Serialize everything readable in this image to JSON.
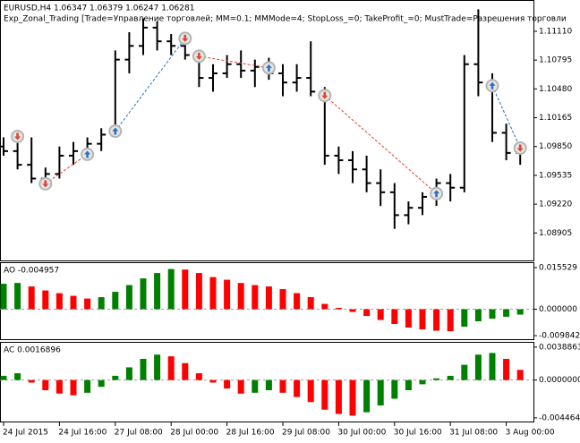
{
  "chart_data": [
    {
      "type": "ohlc",
      "title": "EURUSD,H4  1.06347 1.06379 1.06247 1.06281",
      "subtitle": "Exp_Zonal_Trading [Trade=Управление торговлей; MM=0.1; MMMode=4; StopLoss_=0; TakeProfit_=0; MustTrade=Разрешения торговли",
      "categories": [
        "24 Jul 2015",
        null,
        null,
        null,
        "24 Jul 16:00",
        null,
        null,
        null,
        "27 Jul 08:00",
        null,
        null,
        null,
        "28 Jul 00:00",
        null,
        null,
        null,
        "28 Jul 16:00",
        null,
        null,
        null,
        "29 Jul 08:00",
        null,
        null,
        null,
        "30 Jul 00:00",
        null,
        null,
        null,
        "30 Jul 16:00",
        null,
        null,
        null,
        "31 Jul 08:00",
        null,
        null,
        null,
        "3 Aug 00:00",
        null
      ],
      "open": [
        1.0985,
        1.098,
        1.0965,
        1.095,
        1.0955,
        1.0975,
        1.098,
        1.0988,
        1.0998,
        1.108,
        1.1095,
        1.1115,
        1.11,
        1.1095,
        1.1085,
        1.106,
        1.1065,
        1.1075,
        1.1068,
        1.1072,
        1.1065,
        1.1055,
        1.106,
        1.1045,
        1.0975,
        1.097,
        1.096,
        1.0945,
        1.0935,
        1.091,
        1.0918,
        1.093,
        1.0945,
        1.094,
        1.1075,
        1.1055,
        1.1,
        1.0978
      ],
      "high": [
        1.0995,
        1.099,
        1.0995,
        1.0962,
        1.0985,
        1.099,
        1.0995,
        1.1005,
        1.109,
        1.111,
        1.1125,
        1.1122,
        1.1108,
        1.1105,
        1.109,
        1.1075,
        1.1085,
        1.109,
        1.108,
        1.1082,
        1.1075,
        1.1075,
        1.11,
        1.105,
        1.0985,
        1.098,
        1.0975,
        1.096,
        1.0945,
        1.0925,
        1.0935,
        1.095,
        1.0955,
        1.1085,
        1.1135,
        1.1065,
        1.101,
        1.099
      ],
      "low": [
        1.0975,
        1.096,
        1.0945,
        1.0938,
        1.095,
        1.0965,
        1.097,
        1.098,
        1.0995,
        1.1065,
        1.1085,
        1.109,
        1.1085,
        1.108,
        1.105,
        1.1045,
        1.106,
        1.106,
        1.105,
        1.1058,
        1.104,
        1.1045,
        1.104,
        1.0965,
        1.0955,
        1.0945,
        1.0935,
        1.092,
        1.0895,
        1.09,
        1.091,
        1.092,
        1.0925,
        1.0935,
        1.104,
        1.099,
        1.097,
        1.0965
      ],
      "close": [
        1.098,
        1.0965,
        1.095,
        1.0955,
        1.0975,
        1.098,
        1.0988,
        1.0998,
        1.108,
        1.1095,
        1.1115,
        1.11,
        1.1095,
        1.1085,
        1.106,
        1.1065,
        1.1075,
        1.1068,
        1.1072,
        1.1065,
        1.1055,
        1.106,
        1.1045,
        1.0975,
        1.097,
        1.096,
        1.0945,
        1.0935,
        1.091,
        1.0918,
        1.093,
        1.0945,
        1.094,
        1.1075,
        1.1055,
        1.1,
        1.0978,
        1.098
      ],
      "color": "#000000",
      "ylim": [
        1.08595,
        1.11442
      ],
      "yticks": [
        {
          "value": 1.1111,
          "label": "1.11110"
        },
        1.10795,
        {
          "value": 1.1048,
          "label": "1.10480"
        },
        1.10165,
        {
          "value": 1.0985,
          "label": "1.09850"
        },
        1.09535,
        {
          "value": 1.0922,
          "label": "1.09220"
        },
        1.08905
      ],
      "trade_markers": [
        {
          "x": 1,
          "y": 1.0996,
          "color": "#e0442c",
          "arrow": "down"
        },
        {
          "x": 3,
          "y": 1.09443,
          "color": "#e0442c",
          "arrow": "down"
        },
        {
          "x": 6,
          "y": 1.09765,
          "color": "#2a6fc0",
          "arrow": "up"
        },
        {
          "x": 8,
          "y": 1.10018,
          "color": "#2a6fc0",
          "arrow": "up"
        },
        {
          "x": 13,
          "y": 1.11032,
          "color": "#e0442c",
          "arrow": "down"
        },
        {
          "x": 14,
          "y": 1.10837,
          "color": "#e0442c",
          "arrow": "down"
        },
        {
          "x": 19,
          "y": 1.1071,
          "color": "#2a6fc0",
          "arrow": "up"
        },
        {
          "x": 23,
          "y": 1.10408,
          "color": "#e0442c",
          "arrow": "down"
        },
        {
          "x": 31,
          "y": 1.09336,
          "color": "#2a6fc0",
          "arrow": "up"
        },
        {
          "x": 35,
          "y": 1.10515,
          "color": "#2a6fc0",
          "arrow": "up"
        },
        {
          "x": 37,
          "y": 1.09833,
          "color": "#e0442c",
          "arrow": "down"
        }
      ]
    },
    {
      "type": "bar",
      "title": "AO -0.004957",
      "values": [
        0.0095,
        0.0098,
        0.0085,
        0.007,
        0.006,
        0.005,
        0.004,
        0.0045,
        0.0065,
        0.009,
        0.0115,
        0.0135,
        0.015,
        0.0148,
        0.0135,
        0.012,
        0.011,
        0.0098,
        0.009,
        0.0085,
        0.0075,
        0.006,
        0.0045,
        0.002,
        0.0005,
        -0.001,
        -0.0025,
        -0.004,
        -0.0055,
        -0.0068,
        -0.0075,
        -0.008,
        -0.0082,
        -0.0065,
        -0.0045,
        -0.0035,
        -0.0028,
        -0.002
      ],
      "up_color": "#008000",
      "down_color": "#ff0000",
      "ylim": [
        -0.0115,
        0.0172
      ],
      "yticks": [
        0.015529,
        {
          "value": 0,
          "label": "0.000000"
        },
        -0.009842
      ]
    },
    {
      "type": "bar",
      "title": "AC 0.0016896",
      "values": [
        0.0005,
        0.0008,
        -0.0003,
        -0.0012,
        -0.0016,
        -0.0018,
        -0.0015,
        -0.0008,
        0.0005,
        0.0015,
        0.0025,
        0.003,
        0.0028,
        0.002,
        0.0008,
        -0.0003,
        -0.001,
        -0.0016,
        -0.0015,
        -0.0012,
        -0.0015,
        -0.002,
        -0.0026,
        -0.0035,
        -0.004,
        -0.0042,
        -0.0038,
        -0.003,
        -0.0022,
        -0.0012,
        -0.0005,
        0.0002,
        0.0005,
        0.0018,
        0.003,
        0.0032,
        0.0025,
        0.0012
      ],
      "up_color": "#008000",
      "down_color": "#ff0000",
      "ylim": [
        -0.005,
        0.0044
      ],
      "yticks": [
        0.0038863,
        {
          "value": 0,
          "label": "0.0000000"
        },
        -0.0044644
      ]
    }
  ]
}
